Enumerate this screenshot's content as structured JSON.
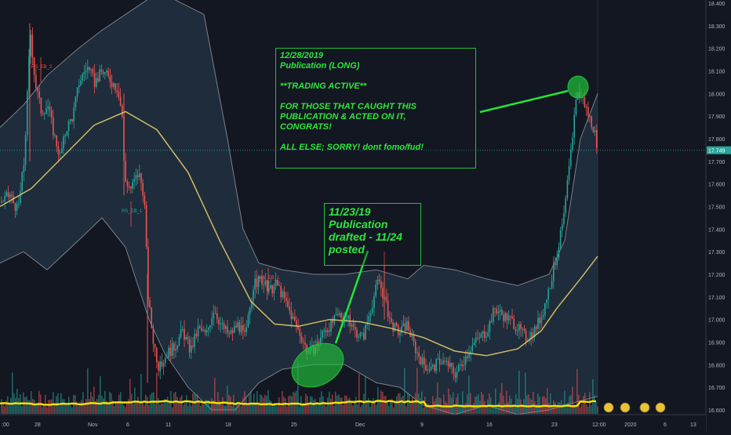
{
  "chart_data": {
    "type": "candlestick",
    "price_axis": {
      "ticks": [
        "18.400",
        "18.300",
        "18.200",
        "18.100",
        "18.000",
        "17.900",
        "17.800",
        "17.700",
        "17.600",
        "17.500",
        "17.400",
        "17.300",
        "17.200",
        "17.100",
        "17.000",
        "16.900",
        "16.800",
        "16.700",
        "16.600"
      ],
      "range": [
        16.56,
        18.42
      ],
      "last_price": "17.749"
    },
    "time_axis": {
      "labels": [
        ":00",
        "28",
        "Nov",
        "6",
        "11",
        "18",
        "25",
        "Dec",
        "9",
        "16",
        "23",
        "12:00",
        "2020",
        "6",
        "13"
      ]
    },
    "series": [
      {
        "type": "price",
        "points": [
          [
            0,
            17.52
          ],
          [
            12,
            17.55
          ],
          [
            22,
            17.48
          ],
          [
            30,
            17.7
          ],
          [
            38,
            18.28
          ],
          [
            44,
            18.05
          ],
          [
            52,
            17.92
          ],
          [
            60,
            17.95
          ],
          [
            68,
            17.82
          ],
          [
            76,
            17.72
          ],
          [
            84,
            17.85
          ],
          [
            92,
            17.9
          ],
          [
            100,
            18.05
          ],
          [
            110,
            18.12
          ],
          [
            120,
            18.05
          ],
          [
            130,
            18.1
          ],
          [
            140,
            18.06
          ],
          [
            150,
            18.02
          ],
          [
            155,
            17.9
          ],
          [
            158,
            17.62
          ],
          [
            166,
            17.58
          ],
          [
            176,
            17.65
          ],
          [
            183,
            17.55
          ],
          [
            188,
            17.1
          ],
          [
            194,
            16.92
          ],
          [
            202,
            16.78
          ],
          [
            212,
            16.85
          ],
          [
            222,
            16.88
          ],
          [
            232,
            16.95
          ],
          [
            242,
            16.86
          ],
          [
            252,
            16.96
          ],
          [
            262,
            16.93
          ],
          [
            272,
            17.05
          ],
          [
            282,
            16.97
          ],
          [
            292,
            16.93
          ],
          [
            302,
            16.98
          ],
          [
            312,
            16.92
          ],
          [
            322,
            17.15
          ],
          [
            332,
            17.18
          ],
          [
            342,
            17.12
          ],
          [
            352,
            17.16
          ],
          [
            360,
            17.1
          ],
          [
            368,
            17.04
          ],
          [
            376,
            16.98
          ],
          [
            384,
            16.92
          ],
          [
            392,
            16.85
          ],
          [
            402,
            16.88
          ],
          [
            412,
            16.95
          ],
          [
            422,
            16.98
          ],
          [
            432,
            17.02
          ],
          [
            442,
            17.0
          ],
          [
            452,
            16.95
          ],
          [
            462,
            16.92
          ],
          [
            472,
            17.05
          ],
          [
            482,
            17.18
          ],
          [
            490,
            17.08
          ],
          [
            498,
            16.98
          ],
          [
            508,
            16.94
          ],
          [
            518,
            16.98
          ],
          [
            530,
            16.86
          ],
          [
            540,
            16.8
          ],
          [
            550,
            16.78
          ],
          [
            560,
            16.82
          ],
          [
            570,
            16.8
          ],
          [
            580,
            16.76
          ],
          [
            590,
            16.82
          ],
          [
            600,
            16.88
          ],
          [
            610,
            16.92
          ],
          [
            620,
            16.95
          ],
          [
            630,
            17.05
          ],
          [
            640,
            17.02
          ],
          [
            650,
            17.0
          ],
          [
            660,
            16.96
          ],
          [
            670,
            16.92
          ],
          [
            680,
            16.95
          ],
          [
            690,
            17.02
          ],
          [
            700,
            17.15
          ],
          [
            710,
            17.3
          ],
          [
            718,
            17.45
          ],
          [
            726,
            17.7
          ],
          [
            734,
            18.0
          ],
          [
            742,
            17.98
          ],
          [
            750,
            17.9
          ],
          [
            756,
            17.85
          ],
          [
            762,
            17.75
          ]
        ]
      },
      {
        "type": "moving-average",
        "points": [
          [
            0,
            17.5
          ],
          [
            40,
            17.58
          ],
          [
            80,
            17.72
          ],
          [
            120,
            17.86
          ],
          [
            160,
            17.92
          ],
          [
            200,
            17.84
          ],
          [
            240,
            17.65
          ],
          [
            280,
            17.35
          ],
          [
            320,
            17.08
          ],
          [
            350,
            16.98
          ],
          [
            380,
            16.97
          ],
          [
            420,
            17.0
          ],
          [
            460,
            16.99
          ],
          [
            500,
            16.96
          ],
          [
            540,
            16.92
          ],
          [
            580,
            16.86
          ],
          [
            620,
            16.84
          ],
          [
            660,
            16.87
          ],
          [
            690,
            16.95
          ],
          [
            710,
            17.05
          ],
          [
            740,
            17.18
          ],
          [
            762,
            17.28
          ]
        ]
      },
      {
        "type": "bollinger-upper",
        "points": [
          [
            0,
            17.85
          ],
          [
            30,
            17.95
          ],
          [
            60,
            18.08
          ],
          [
            100,
            18.2
          ],
          [
            130,
            18.28
          ],
          [
            160,
            18.35
          ],
          [
            190,
            18.42
          ],
          [
            220,
            18.42
          ],
          [
            260,
            18.35
          ],
          [
            290,
            17.8
          ],
          [
            310,
            17.4
          ],
          [
            330,
            17.25
          ],
          [
            360,
            17.22
          ],
          [
            400,
            17.2
          ],
          [
            440,
            17.2
          ],
          [
            480,
            17.22
          ],
          [
            520,
            17.18
          ],
          [
            540,
            17.24
          ],
          [
            580,
            17.22
          ],
          [
            620,
            17.18
          ],
          [
            660,
            17.15
          ],
          [
            700,
            17.2
          ],
          [
            720,
            17.35
          ],
          [
            740,
            17.8
          ],
          [
            762,
            18.0
          ]
        ]
      },
      {
        "type": "bollinger-lower",
        "points": [
          [
            0,
            17.25
          ],
          [
            30,
            17.3
          ],
          [
            60,
            17.22
          ],
          [
            100,
            17.35
          ],
          [
            130,
            17.45
          ],
          [
            160,
            17.32
          ],
          [
            190,
            17.0
          ],
          [
            210,
            16.85
          ],
          [
            240,
            16.7
          ],
          [
            270,
            16.6
          ],
          [
            300,
            16.6
          ],
          [
            330,
            16.72
          ],
          [
            360,
            16.78
          ],
          [
            400,
            16.8
          ],
          [
            440,
            16.8
          ],
          [
            480,
            16.72
          ],
          [
            510,
            16.7
          ],
          [
            540,
            16.62
          ],
          [
            580,
            16.58
          ],
          [
            620,
            16.62
          ],
          [
            660,
            16.58
          ],
          [
            700,
            16.6
          ],
          [
            720,
            16.62
          ],
          [
            740,
            16.64
          ],
          [
            762,
            16.66
          ]
        ]
      }
    ],
    "volume_overlay": true,
    "annotations": [
      {
        "lines": [
          "12/28/2019",
          "Publication (LONG)",
          "",
          "**TRADING ACTIVE**",
          "",
          "FOR THOSE THAT CAUGHT THIS",
          "PUBLICATION & ACTED ON IT,",
          "CONGRATS!",
          "",
          "ALL ELSE; SORRY! dont fomo/fud!"
        ]
      },
      {
        "lines": [
          "11/23/19",
          "Publication",
          "drafted - 11/24",
          "posted"
        ]
      }
    ],
    "markers": [
      "RS_EB_2",
      "RS_EB_1",
      "RS_EB_1"
    ],
    "grid": false,
    "colors": {
      "background": "#131722",
      "up": "#26a69a",
      "down": "#ef5350",
      "moving_average": "#e5c96a",
      "bands": "#9598a1",
      "annotation": "#22c33a",
      "volume_line": "#f5e400"
    }
  }
}
